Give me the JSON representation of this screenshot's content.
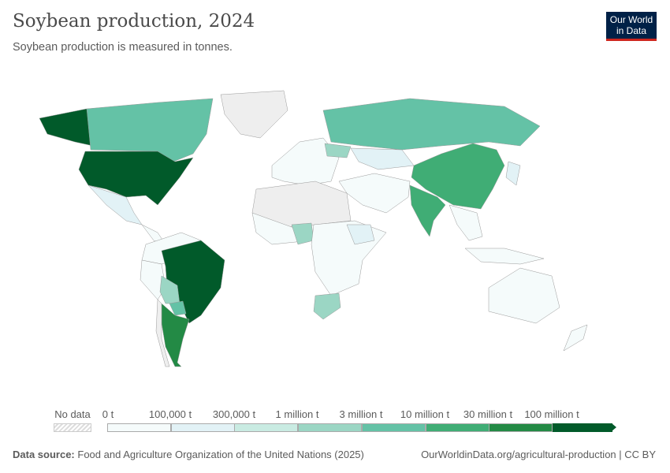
{
  "header": {
    "title": "Soybean production, 2024",
    "subtitle": "Soybean production is measured in tonnes.",
    "logo": "Our World in Data"
  },
  "legend": {
    "no_data_label": "No data",
    "bins": [
      {
        "label": "0 t",
        "color": "#f5fbfb"
      },
      {
        "label": "100,000 t",
        "color": "#e2f2f6"
      },
      {
        "label": "300,000 t",
        "color": "#c9ebe2"
      },
      {
        "label": "1 million t",
        "color": "#9bd6c4"
      },
      {
        "label": "3 million t",
        "color": "#64c2a6"
      },
      {
        "label": "10 million t",
        "color": "#40ad75"
      },
      {
        "label": "30 million t",
        "color": "#238a45"
      },
      {
        "label": "100 million t",
        "color": "#015a2a"
      }
    ]
  },
  "footer": {
    "source_label": "Data source:",
    "source": "Food and Agriculture Organization of the United Nations (2025)",
    "url": "OurWorldinData.org/agricultural-production | CC BY"
  },
  "map": {
    "countries": [
      {
        "name": "United States",
        "bin": "100 million t"
      },
      {
        "name": "Brazil",
        "bin": "100 million t"
      },
      {
        "name": "Argentina",
        "bin": "30 million t"
      },
      {
        "name": "China",
        "bin": "10 million t"
      },
      {
        "name": "India",
        "bin": "10 million t"
      },
      {
        "name": "Paraguay",
        "bin": "3 million t"
      },
      {
        "name": "Canada",
        "bin": "3 million t"
      },
      {
        "name": "Russia",
        "bin": "3 million t"
      },
      {
        "name": "Bolivia",
        "bin": "1 million t"
      },
      {
        "name": "Ukraine",
        "bin": "1 million t"
      },
      {
        "name": "South Africa",
        "bin": "1 million t"
      },
      {
        "name": "Nigeria",
        "bin": "1 million t"
      },
      {
        "name": "Uruguay",
        "bin": "1 million t"
      }
    ]
  }
}
